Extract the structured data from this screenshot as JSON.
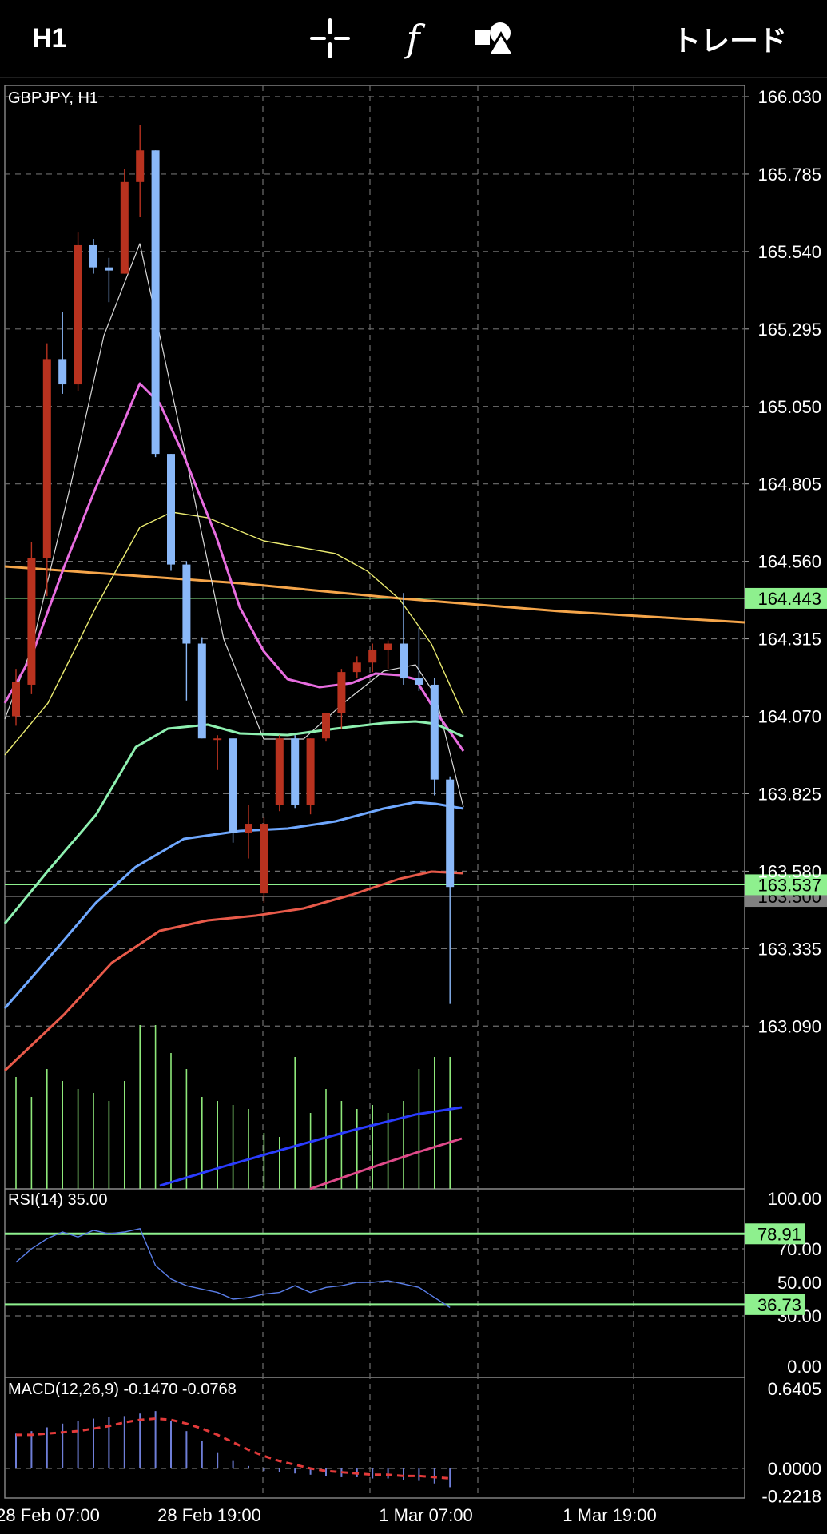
{
  "toolbar": {
    "timeframe": "H1",
    "crosshair_icon": "crosshair-icon",
    "indicators_label": "f",
    "objects_icon": "shapes-icon",
    "trade_label": "トレード"
  },
  "chart_data": {
    "type": "candlestick",
    "symbol_label": "GBPJPY, H1",
    "price_ticks": [
      "166.030",
      "165.785",
      "165.540",
      "165.295",
      "165.050",
      "164.805",
      "164.560",
      "164.315",
      "164.070",
      "163.825",
      "163.580",
      "163.335",
      "163.090"
    ],
    "tick_values": [
      166.03,
      165.785,
      165.54,
      165.295,
      165.05,
      164.805,
      164.56,
      164.315,
      164.07,
      163.825,
      163.58,
      163.335,
      163.09
    ],
    "time_labels": [
      "28 Feb 07:00",
      "28 Feb 19:00",
      "1 Mar 07:00",
      "1 Mar 19:00"
    ],
    "horizontal_lines": [
      {
        "label": "164.443",
        "value": 164.443,
        "color": "#8ef08e"
      },
      {
        "label": "163.537",
        "value": 163.537,
        "color": "#8ef08e"
      },
      {
        "label": "163.500",
        "value": 163.5,
        "color": "#808080"
      }
    ],
    "candles": [
      {
        "o": 164.07,
        "h": 164.22,
        "l": 164.04,
        "c": 164.18
      },
      {
        "o": 164.17,
        "h": 164.62,
        "l": 164.14,
        "c": 164.57
      },
      {
        "o": 164.57,
        "h": 165.25,
        "l": 164.45,
        "c": 165.2
      },
      {
        "o": 165.2,
        "h": 165.35,
        "l": 165.09,
        "c": 165.12
      },
      {
        "o": 165.12,
        "h": 165.6,
        "l": 165.1,
        "c": 165.56
      },
      {
        "o": 165.56,
        "h": 165.58,
        "l": 165.47,
        "c": 165.49
      },
      {
        "o": 165.49,
        "h": 165.52,
        "l": 165.38,
        "c": 165.48
      },
      {
        "o": 165.47,
        "h": 165.8,
        "l": 165.47,
        "c": 165.76
      },
      {
        "o": 165.76,
        "h": 165.94,
        "l": 165.65,
        "c": 165.86
      },
      {
        "o": 165.86,
        "h": 165.86,
        "l": 164.89,
        "c": 164.9
      },
      {
        "o": 164.9,
        "h": 164.9,
        "l": 164.53,
        "c": 164.55
      },
      {
        "o": 164.55,
        "h": 164.56,
        "l": 164.12,
        "c": 164.3
      },
      {
        "o": 164.3,
        "h": 164.32,
        "l": 164.0,
        "c": 164.0
      },
      {
        "o": 164.0,
        "h": 164.01,
        "l": 163.9,
        "c": 164.0
      },
      {
        "o": 164.0,
        "h": 164.0,
        "l": 163.67,
        "c": 163.7
      },
      {
        "o": 163.7,
        "h": 163.79,
        "l": 163.62,
        "c": 163.73
      },
      {
        "o": 163.51,
        "h": 163.75,
        "l": 163.48,
        "c": 163.73
      },
      {
        "o": 163.79,
        "h": 164.01,
        "l": 163.77,
        "c": 164.0
      },
      {
        "o": 164.0,
        "h": 164.01,
        "l": 163.78,
        "c": 163.79
      },
      {
        "o": 163.79,
        "h": 164.0,
        "l": 163.76,
        "c": 164.0
      },
      {
        "o": 164.0,
        "h": 164.08,
        "l": 163.99,
        "c": 164.08
      },
      {
        "o": 164.08,
        "h": 164.22,
        "l": 164.03,
        "c": 164.21
      },
      {
        "o": 164.21,
        "h": 164.26,
        "l": 164.19,
        "c": 164.24
      },
      {
        "o": 164.24,
        "h": 164.3,
        "l": 164.21,
        "c": 164.28
      },
      {
        "o": 164.28,
        "h": 164.31,
        "l": 164.22,
        "c": 164.3
      },
      {
        "o": 164.3,
        "h": 164.46,
        "l": 164.17,
        "c": 164.19
      },
      {
        "o": 164.19,
        "h": 164.35,
        "l": 164.15,
        "c": 164.17
      },
      {
        "o": 164.17,
        "h": 164.19,
        "l": 163.82,
        "c": 163.87
      },
      {
        "o": 163.87,
        "h": 163.88,
        "l": 163.16,
        "c": 163.53
      }
    ],
    "panes": {
      "rsi": {
        "label": "RSI(14) 35.00",
        "ticks": [
          "100.00",
          "70.00",
          "50.00",
          "30.00",
          "0.00"
        ],
        "levels": [
          {
            "label": "78.91",
            "value": 78.91
          },
          {
            "label": "36.73",
            "value": 36.73
          }
        ],
        "values": [
          62,
          70,
          76,
          80,
          77,
          81,
          79,
          80,
          82,
          60,
          52,
          48,
          46,
          44,
          40,
          41,
          43,
          44,
          48,
          44,
          47,
          48,
          50,
          50,
          51,
          49,
          47,
          41,
          35
        ]
      },
      "macd": {
        "label": "MACD(12,26,9) -0.1470 -0.0768",
        "ticks": [
          "0.6405",
          "0.0000",
          "-0.2218"
        ],
        "histogram": [
          0.28,
          0.3,
          0.33,
          0.36,
          0.38,
          0.4,
          0.41,
          0.42,
          0.44,
          0.46,
          0.38,
          0.3,
          0.22,
          0.13,
          0.06,
          0.02,
          -0.02,
          -0.03,
          -0.04,
          -0.05,
          -0.06,
          -0.07,
          -0.07,
          -0.08,
          -0.08,
          -0.09,
          -0.1,
          -0.12,
          -0.15
        ],
        "signal": [
          0.27,
          0.27,
          0.28,
          0.29,
          0.3,
          0.32,
          0.34,
          0.37,
          0.39,
          0.4,
          0.39,
          0.36,
          0.32,
          0.27,
          0.21,
          0.15,
          0.1,
          0.06,
          0.03,
          0.0,
          -0.02,
          -0.03,
          -0.04,
          -0.05,
          -0.05,
          -0.06,
          -0.06,
          -0.07,
          -0.08
        ]
      }
    }
  }
}
